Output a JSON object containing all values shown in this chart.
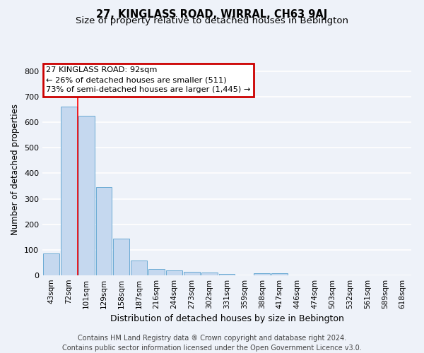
{
  "title": "27, KINGLASS ROAD, WIRRAL, CH63 9AJ",
  "subtitle": "Size of property relative to detached houses in Bebington",
  "xlabel": "Distribution of detached houses by size in Bebington",
  "ylabel": "Number of detached properties",
  "categories": [
    "43sqm",
    "72sqm",
    "101sqm",
    "129sqm",
    "158sqm",
    "187sqm",
    "216sqm",
    "244sqm",
    "273sqm",
    "302sqm",
    "331sqm",
    "359sqm",
    "388sqm",
    "417sqm",
    "446sqm",
    "474sqm",
    "503sqm",
    "532sqm",
    "561sqm",
    "589sqm",
    "618sqm"
  ],
  "values": [
    85,
    660,
    625,
    345,
    145,
    58,
    25,
    20,
    13,
    10,
    6,
    0,
    8,
    8,
    0,
    0,
    0,
    0,
    0,
    0,
    0
  ],
  "bar_color": "#c5d8ef",
  "bar_edge_color": "#6aaad4",
  "red_line_index": 1.5,
  "annotation_text": "27 KINGLASS ROAD: 92sqm\n← 26% of detached houses are smaller (511)\n73% of semi-detached houses are larger (1,445) →",
  "annotation_box_color": "#ffffff",
  "annotation_box_edge": "#cc0000",
  "footer": "Contains HM Land Registry data ® Crown copyright and database right 2024.\nContains public sector information licensed under the Open Government Licence v3.0.",
  "ylim": [
    0,
    830
  ],
  "yticks": [
    0,
    100,
    200,
    300,
    400,
    500,
    600,
    700,
    800
  ],
  "bg_color": "#eef2f9",
  "grid_color": "#ffffff",
  "title_fontsize": 10.5,
  "subtitle_fontsize": 9.5,
  "footer_fontsize": 7
}
